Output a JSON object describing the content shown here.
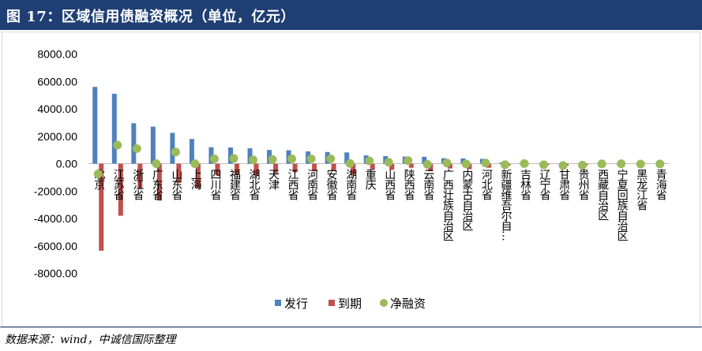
{
  "title": "图 17：区域信用债融资概况（单位，亿元）",
  "source": "数据来源：wind，中诚信国际整理",
  "colors": {
    "issue": "#4f81bd",
    "mature": "#c0504d",
    "net": "#9bbb59"
  },
  "chart_data": {
    "type": "bar",
    "categories": [
      "北京",
      "江苏省",
      "浙江省",
      "广东省",
      "山东省",
      "上海",
      "四川省",
      "福建省",
      "湖北省",
      "天津",
      "江西省",
      "河南省",
      "安徽省",
      "湖南省",
      "重庆",
      "山西省",
      "陕西省",
      "云南省",
      "广西壮族自治区",
      "内蒙古自治区",
      "河北省",
      "新疆维吾尔自治区",
      "吉林省",
      "辽宁省",
      "甘肃省",
      "贵州省",
      "西藏自治区",
      "宁夏回族自治区",
      "黑龙江省",
      "青海省"
    ],
    "category_labels": [
      "北京",
      "江苏省",
      "浙江省",
      "广东省",
      "山东省",
      "上海",
      "四川省",
      "福建省",
      "湖北省",
      "天津",
      "江西省",
      "河南省",
      "安徽省",
      "湖南省",
      "重庆",
      "山西省",
      "陕西省",
      "云南省",
      "广西壮族自治区",
      "内蒙古自治区",
      "河北省",
      "新疆维吾尔自…",
      "吉林省",
      "辽宁省",
      "甘肃省",
      "贵州省",
      "西藏自治区",
      "宁夏回族自治区",
      "黑龙江省",
      "青海省"
    ],
    "series": [
      {
        "name": "发行",
        "kind": "bar",
        "values": [
          5600,
          5100,
          2950,
          2700,
          2250,
          1800,
          1200,
          1180,
          1120,
          1000,
          980,
          900,
          850,
          820,
          600,
          550,
          520,
          500,
          400,
          380,
          350,
          80,
          40,
          20,
          15,
          10,
          5,
          5,
          3,
          2
        ]
      },
      {
        "name": "到期",
        "kind": "bar",
        "values": [
          -6350,
          -3800,
          -1850,
          -2700,
          -1400,
          -1800,
          -850,
          -800,
          -850,
          -700,
          -630,
          -550,
          -500,
          -800,
          -400,
          -450,
          -300,
          -550,
          -350,
          -400,
          -300,
          -150,
          -30,
          -100,
          -150,
          -120,
          -20,
          -10,
          -30,
          -20
        ]
      },
      {
        "name": "净融资",
        "kind": "scatter",
        "values": [
          -750,
          1350,
          1100,
          0,
          850,
          0,
          350,
          380,
          270,
          300,
          350,
          350,
          350,
          20,
          200,
          100,
          220,
          -50,
          50,
          -20,
          50,
          -70,
          10,
          -80,
          -135,
          -110,
          -15,
          -5,
          -27,
          -18
        ]
      }
    ],
    "ylim": [
      -8000,
      8000
    ],
    "yticks": [
      "8000.00",
      "6000.00",
      "4000.00",
      "2000.00",
      "0.00",
      "-2000.00",
      "-4000.00",
      "-6000.00",
      "-8000.00"
    ],
    "ytick_values": [
      8000,
      6000,
      4000,
      2000,
      0,
      -2000,
      -4000,
      -6000,
      -8000
    ],
    "legend_position": "bottom",
    "grid": false
  }
}
